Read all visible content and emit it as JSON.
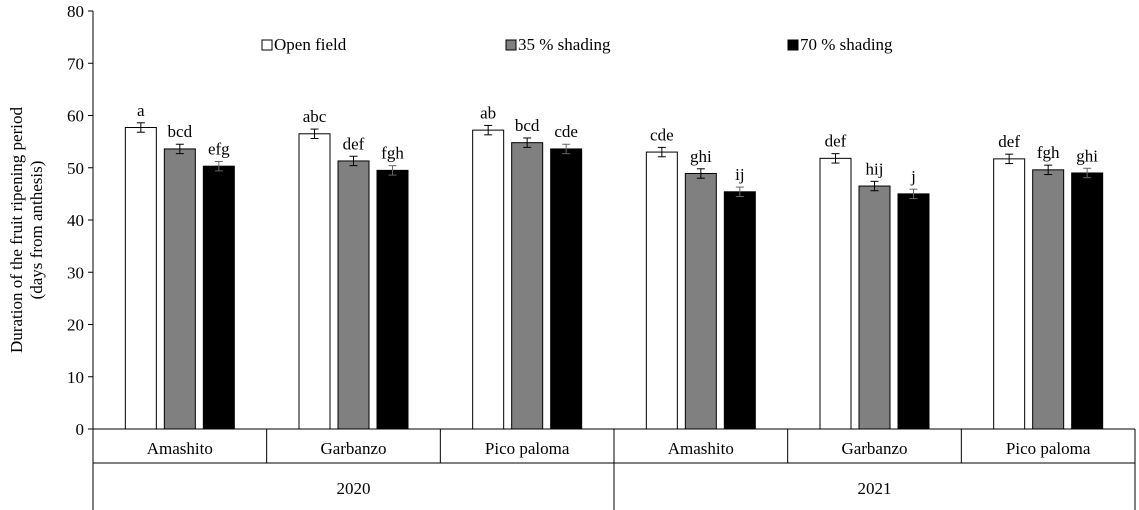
{
  "chart_data": {
    "type": "bar",
    "title": "",
    "ylabel": "Duration of the fruit ripening period",
    "ylabel2": "(days from anthesis)",
    "xlabel": "",
    "ylim": [
      0,
      80
    ],
    "yticks": [
      0,
      10,
      20,
      30,
      40,
      50,
      60,
      70,
      80
    ],
    "grid": false,
    "legend_position": "top",
    "groups": [
      {
        "label": "2020",
        "categories": [
          "Amashito",
          "Garbanzo",
          "Pico paloma"
        ]
      },
      {
        "label": "2021",
        "categories": [
          "Amashito",
          "Garbanzo",
          "Pico paloma"
        ]
      }
    ],
    "categories": [
      "Amashito",
      "Garbanzo",
      "Pico paloma",
      "Amashito",
      "Garbanzo",
      "Pico paloma"
    ],
    "series": [
      {
        "name": "Open field",
        "color": "#ffffff",
        "values": [
          57.7,
          56.5,
          57.2,
          53.0,
          51.8,
          51.7
        ],
        "errors": [
          0.9,
          0.9,
          0.9,
          0.9,
          0.9,
          0.9
        ],
        "labels": [
          "a",
          "abc",
          "ab",
          "cde",
          "def",
          "def"
        ]
      },
      {
        "name": "35 % shading",
        "color": "#808080",
        "values": [
          53.6,
          51.3,
          54.8,
          48.9,
          46.5,
          49.6
        ],
        "errors": [
          0.9,
          0.9,
          0.9,
          0.9,
          0.9,
          0.9
        ],
        "labels": [
          "bcd",
          "def",
          "bcd",
          "ghi",
          "hij",
          "fgh"
        ]
      },
      {
        "name": "70 % shading",
        "color": "#000000",
        "values": [
          50.3,
          49.5,
          53.6,
          45.4,
          45.0,
          49.0
        ],
        "errors": [
          0.9,
          0.9,
          0.9,
          0.9,
          0.9,
          0.9
        ],
        "labels": [
          "efg",
          "fgh",
          "cde",
          "ij",
          "j",
          "ghi"
        ]
      }
    ]
  }
}
